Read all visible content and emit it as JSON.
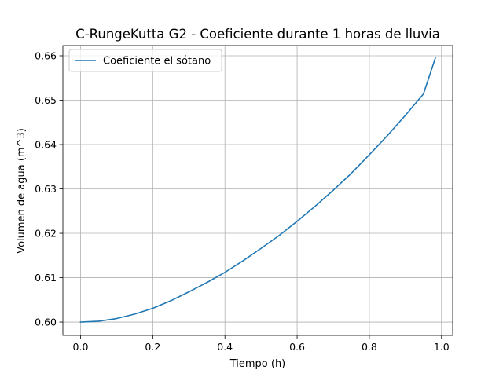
{
  "chart_data": {
    "type": "line",
    "title": "C-RungeKutta G2 - Coeficiente durante 1 horas de lluvia",
    "xlabel": "Tiempo (h)",
    "ylabel": "Volumen de agua (m^3)",
    "xlim": [
      -0.049,
      1.031
    ],
    "ylim": [
      0.597,
      0.6623
    ],
    "xticks": [
      0.0,
      0.2,
      0.4,
      0.6,
      0.8,
      1.0
    ],
    "xtick_labels": [
      "0.0",
      "0.2",
      "0.4",
      "0.6",
      "0.8",
      "1.0"
    ],
    "yticks": [
      0.6,
      0.61,
      0.62,
      0.63,
      0.64,
      0.65,
      0.66
    ],
    "ytick_labels": [
      "0.60",
      "0.61",
      "0.62",
      "0.63",
      "0.64",
      "0.65",
      "0.66"
    ],
    "grid": true,
    "legend_position": "top-left",
    "series": [
      {
        "name": "Coeficiente el sótano",
        "color": "#1f77b4",
        "x": [
          0.0,
          0.05,
          0.1,
          0.15,
          0.2,
          0.25,
          0.3,
          0.35,
          0.4,
          0.45,
          0.5,
          0.55,
          0.6,
          0.65,
          0.7,
          0.75,
          0.8,
          0.85,
          0.9,
          0.95,
          0.983
        ],
        "y": [
          0.6,
          0.6002,
          0.6008,
          0.6018,
          0.6031,
          0.6048,
          0.6068,
          0.6089,
          0.6112,
          0.6138,
          0.6166,
          0.6195,
          0.6227,
          0.6261,
          0.6297,
          0.6335,
          0.6377,
          0.642,
          0.6466,
          0.6514,
          0.6595
        ]
      }
    ]
  }
}
